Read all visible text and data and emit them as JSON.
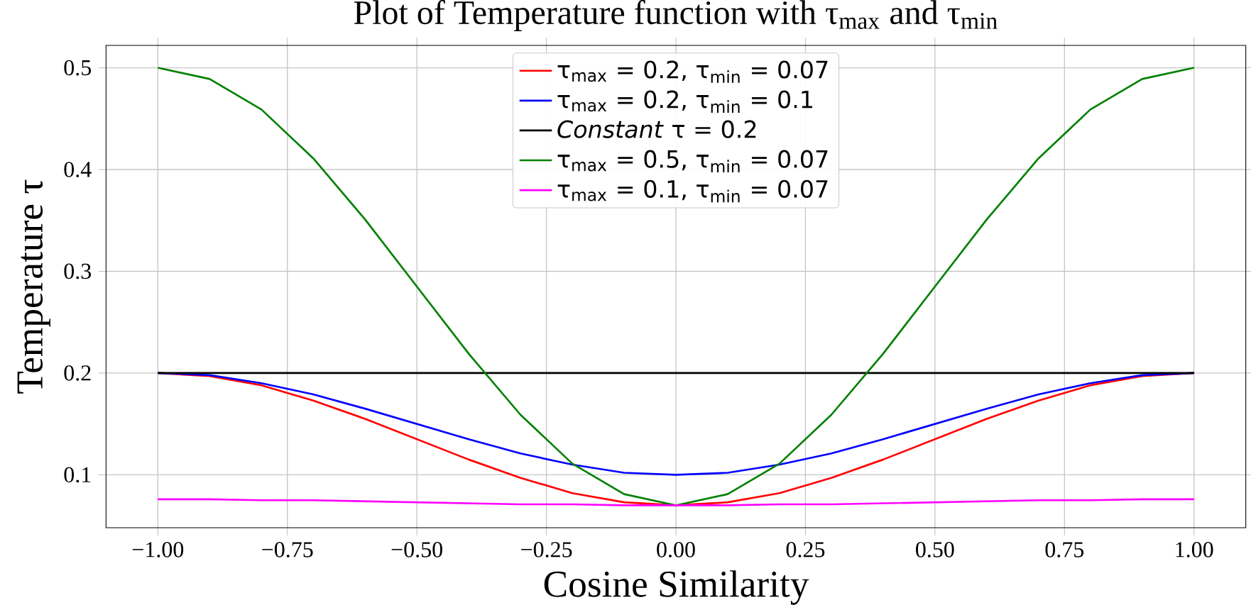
{
  "chart_data": {
    "type": "line",
    "title": "Plot of Temperature function with τ$_{max}$ and τ$_{min}$",
    "xlabel": "Cosine Similarity",
    "ylabel": "Temperature τ",
    "x": [
      -1.0,
      -0.9,
      -0.8,
      -0.7,
      -0.6,
      -0.5,
      -0.4,
      -0.3,
      -0.2,
      -0.1,
      0.0,
      0.1,
      0.2,
      0.3,
      0.4,
      0.5,
      0.6,
      0.7,
      0.8,
      0.9,
      1.0
    ],
    "series": [
      {
        "name": "τ$_{max}$ = 0.2, τ$_{min}$ = 0.07",
        "color": "#ff0000",
        "values": [
          0.2,
          0.197,
          0.188,
          0.173,
          0.155,
          0.135,
          0.115,
          0.097,
          0.082,
          0.073,
          0.07,
          0.073,
          0.082,
          0.097,
          0.115,
          0.135,
          0.155,
          0.173,
          0.188,
          0.197,
          0.2
        ]
      },
      {
        "name": "τ$_{max}$ = 0.2, τ$_{min}$ = 0.1",
        "color": "#0000ff",
        "values": [
          0.2,
          0.198,
          0.19,
          0.179,
          0.165,
          0.15,
          0.135,
          0.121,
          0.11,
          0.102,
          0.1,
          0.102,
          0.11,
          0.121,
          0.135,
          0.15,
          0.165,
          0.179,
          0.19,
          0.198,
          0.2
        ]
      },
      {
        "name": "*Constant*  τ = 0.2",
        "color": "#000000",
        "values": [
          0.2,
          0.2,
          0.2,
          0.2,
          0.2,
          0.2,
          0.2,
          0.2,
          0.2,
          0.2,
          0.2,
          0.2,
          0.2,
          0.2,
          0.2,
          0.2,
          0.2,
          0.2,
          0.2,
          0.2,
          0.2
        ]
      },
      {
        "name": "τ$_{max}$ = 0.5, τ$_{min}$ = 0.07",
        "color": "#008000",
        "values": [
          0.5,
          0.489,
          0.459,
          0.411,
          0.351,
          0.285,
          0.219,
          0.159,
          0.111,
          0.081,
          0.07,
          0.081,
          0.111,
          0.159,
          0.219,
          0.285,
          0.351,
          0.411,
          0.459,
          0.489,
          0.5
        ]
      },
      {
        "name": "τ$_{max}$ = 0.1, τ$_{min}$ = 0.07",
        "color": "#ff00ff",
        "values": [
          0.076,
          0.076,
          0.075,
          0.075,
          0.074,
          0.073,
          0.072,
          0.071,
          0.071,
          0.07,
          0.07,
          0.07,
          0.071,
          0.071,
          0.072,
          0.073,
          0.074,
          0.075,
          0.075,
          0.076,
          0.076
        ]
      }
    ],
    "xlim": [
      -1.1,
      1.1
    ],
    "xticks": [
      {
        "value": -1.0,
        "label": "−1.00"
      },
      {
        "value": -0.75,
        "label": "−0.75"
      },
      {
        "value": -0.5,
        "label": "−0.50"
      },
      {
        "value": -0.25,
        "label": "−0.25"
      },
      {
        "value": 0.0,
        "label": "0.00"
      },
      {
        "value": 0.25,
        "label": "0.25"
      },
      {
        "value": 0.5,
        "label": "0.50"
      },
      {
        "value": 0.75,
        "label": "0.75"
      },
      {
        "value": 1.0,
        "label": "1.00"
      }
    ],
    "ylim": [
      0.048,
      0.522
    ],
    "yticks": [
      0.1,
      0.2,
      0.3,
      0.4,
      0.5
    ],
    "grid": true,
    "legend": "top",
    "line_style": "solid"
  }
}
